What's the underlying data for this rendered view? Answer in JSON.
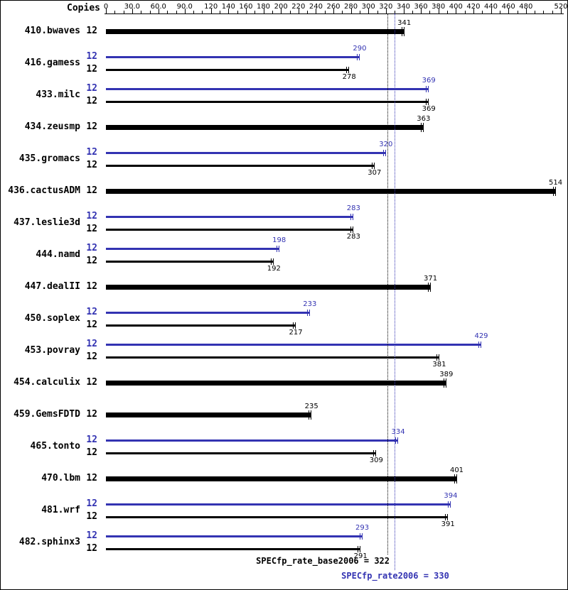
{
  "header": {
    "copies_label": "Copies"
  },
  "axis": {
    "min": 0,
    "max": 520,
    "minor_step": 10,
    "ticks": [
      {
        "v": 0,
        "label": "0"
      },
      {
        "v": 30,
        "label": "30.0"
      },
      {
        "v": 60,
        "label": "60.0"
      },
      {
        "v": 90,
        "label": "90.0"
      },
      {
        "v": 120,
        "label": "120"
      },
      {
        "v": 140,
        "label": "140"
      },
      {
        "v": 160,
        "label": "160"
      },
      {
        "v": 180,
        "label": "180"
      },
      {
        "v": 200,
        "label": "200"
      },
      {
        "v": 220,
        "label": "220"
      },
      {
        "v": 240,
        "label": "240"
      },
      {
        "v": 260,
        "label": "260"
      },
      {
        "v": 280,
        "label": "280"
      },
      {
        "v": 300,
        "label": "300"
      },
      {
        "v": 320,
        "label": "320"
      },
      {
        "v": 340,
        "label": "340"
      },
      {
        "v": 360,
        "label": "360"
      },
      {
        "v": 380,
        "label": "380"
      },
      {
        "v": 400,
        "label": "400"
      },
      {
        "v": 420,
        "label": "420"
      },
      {
        "v": 440,
        "label": "440"
      },
      {
        "v": 460,
        "label": "460"
      },
      {
        "v": 480,
        "label": "480"
      },
      {
        "v": 520,
        "label": "520"
      }
    ]
  },
  "chart_data": {
    "type": "bar",
    "orientation": "horizontal",
    "xlim": [
      0,
      520
    ],
    "categories": [
      "410.bwaves",
      "416.gamess",
      "433.milc",
      "434.zeusmp",
      "435.gromacs",
      "436.cactusADM",
      "437.leslie3d",
      "444.namd",
      "447.dealII",
      "450.soplex",
      "453.povray",
      "454.calculix",
      "459.GemsFDTD",
      "465.tonto",
      "470.lbm",
      "481.wrf",
      "482.sphinx3"
    ],
    "copies": [
      12,
      12,
      12,
      12,
      12,
      12,
      12,
      12,
      12,
      12,
      12,
      12,
      12,
      12,
      12,
      12,
      12
    ],
    "series": [
      {
        "name": "peak",
        "color": "#3333b2",
        "values": [
          null,
          290,
          369,
          null,
          320,
          null,
          283,
          198,
          null,
          233,
          429,
          null,
          null,
          334,
          null,
          394,
          293
        ]
      },
      {
        "name": "base",
        "color": "#000000",
        "values": [
          341,
          278,
          369,
          363,
          307,
          514,
          283,
          192,
          371,
          217,
          381,
          389,
          235,
          309,
          401,
          391,
          291
        ]
      }
    ],
    "reference_lines": [
      {
        "name": "base_mean",
        "value": 322,
        "color": "#000000",
        "style": "dotted"
      },
      {
        "name": "peak_mean",
        "value": 330,
        "color": "#3333b2",
        "style": "dotted"
      }
    ],
    "base_mean_label": "SPECfp_rate_base2006 = 322",
    "peak_mean_label": "SPECfp_rate2006 = 330"
  }
}
